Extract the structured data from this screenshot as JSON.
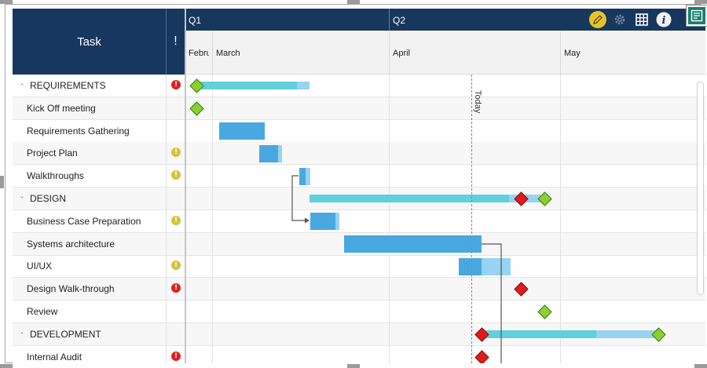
{
  "header": {
    "task_label": "Task",
    "alert_label": "!",
    "quarters": [
      "Q1",
      "Q2"
    ],
    "months": [
      "February",
      "March",
      "April",
      "May"
    ]
  },
  "today_label": "Today",
  "rows": [
    {
      "label": "REQUIREMENTS",
      "summary": true,
      "alert": "red"
    },
    {
      "label": "Kick Off meeting",
      "summary": false,
      "alert": ""
    },
    {
      "label": "Requirements Gathering",
      "summary": false,
      "alert": ""
    },
    {
      "label": "Project Plan",
      "summary": false,
      "alert": "yellow"
    },
    {
      "label": "Walkthroughs",
      "summary": false,
      "alert": "yellow"
    },
    {
      "label": "DESIGN",
      "summary": true,
      "alert": ""
    },
    {
      "label": "Business Case Preparation",
      "summary": false,
      "alert": "yellow"
    },
    {
      "label": "Systems architecture",
      "summary": false,
      "alert": ""
    },
    {
      "label": "UI/UX",
      "summary": false,
      "alert": "yellow"
    },
    {
      "label": "Design Walk-through",
      "summary": false,
      "alert": "red"
    },
    {
      "label": "Review",
      "summary": false,
      "alert": ""
    },
    {
      "label": "DEVELOPMENT",
      "summary": true,
      "alert": ""
    },
    {
      "label": "Internal Audit",
      "summary": false,
      "alert": "red"
    }
  ],
  "toolbar": {
    "icons": [
      "pencil-icon",
      "gear-icon",
      "grid-icon",
      "info-icon"
    ]
  },
  "colors": {
    "header_bg": "#17375e",
    "summary_bar": "#5fd0dc",
    "task_bar": "#4aa8e0",
    "task_bar_light": "#97d3f4",
    "milestone_green": "#8ad12f",
    "milestone_red": "#e01b1b"
  }
}
